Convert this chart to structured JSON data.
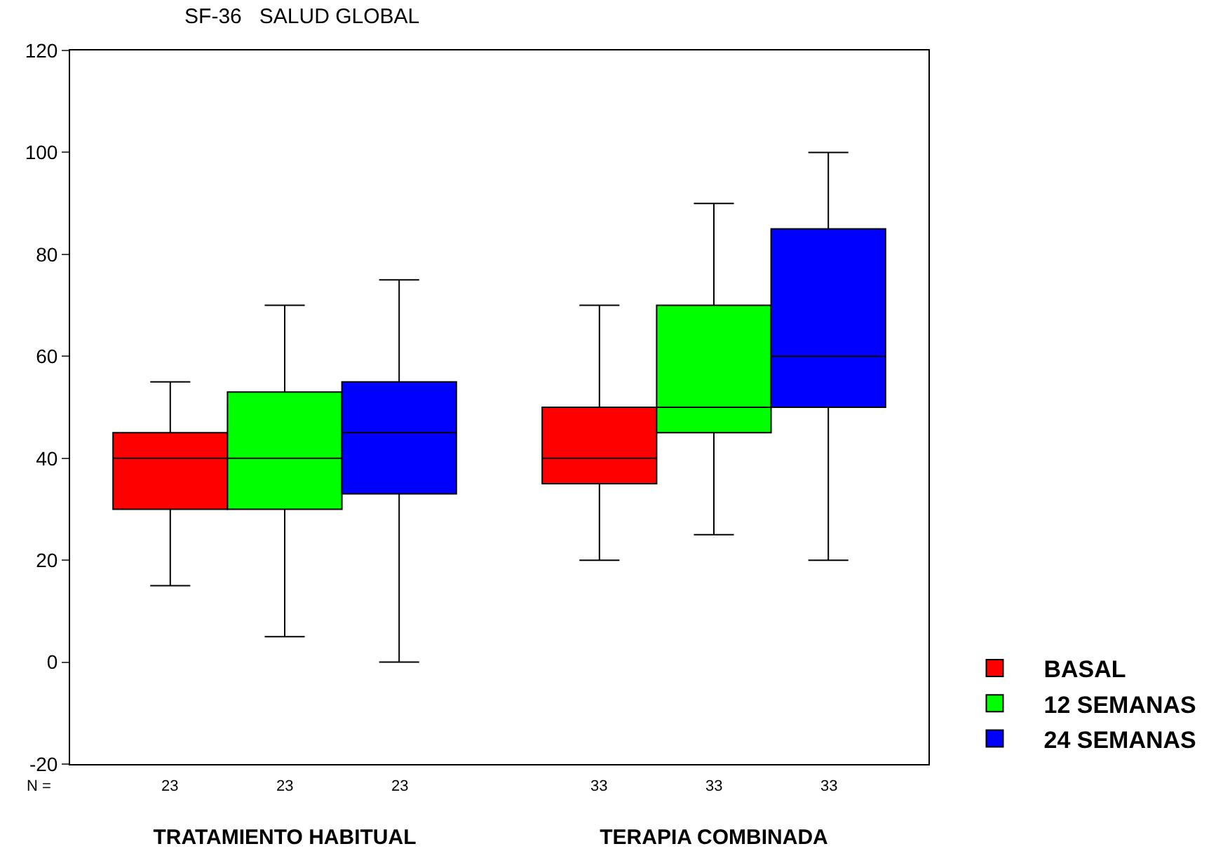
{
  "chart_data": {
    "type": "box",
    "title": "SF-36   SALUD GLOBAL",
    "categories": [
      "TRATAMIENTO HABITUAL",
      "TERAPIA COMBINADA"
    ],
    "series": [
      {
        "name": "BASAL",
        "color": "#ff0000",
        "boxes": [
          {
            "low": 15,
            "q1": 30,
            "median": 40,
            "q3": 45,
            "high": 55
          },
          {
            "low": 20,
            "q1": 35,
            "median": 40,
            "q3": 50,
            "high": 70
          }
        ]
      },
      {
        "name": "12 SEMANAS",
        "color": "#00ff00",
        "boxes": [
          {
            "low": 5,
            "q1": 30,
            "median": 40,
            "q3": 53,
            "high": 70
          },
          {
            "low": 25,
            "q1": 45,
            "median": 50,
            "q3": 70,
            "high": 90
          }
        ]
      },
      {
        "name": "24 SEMANAS",
        "color": "#0000ff",
        "boxes": [
          {
            "low": 0,
            "q1": 33,
            "median": 45,
            "q3": 55,
            "high": 75
          },
          {
            "low": 20,
            "q1": 50,
            "median": 60,
            "q3": 85,
            "high": 100
          }
        ]
      }
    ],
    "annotations": [
      "N =",
      "23",
      "23",
      "23",
      "33",
      "33",
      "33"
    ],
    "ylim": [
      -20,
      120
    ],
    "yticks": [
      -20,
      0,
      20,
      40,
      60,
      80,
      100,
      120
    ],
    "grid": false,
    "legend": "bottom right"
  }
}
